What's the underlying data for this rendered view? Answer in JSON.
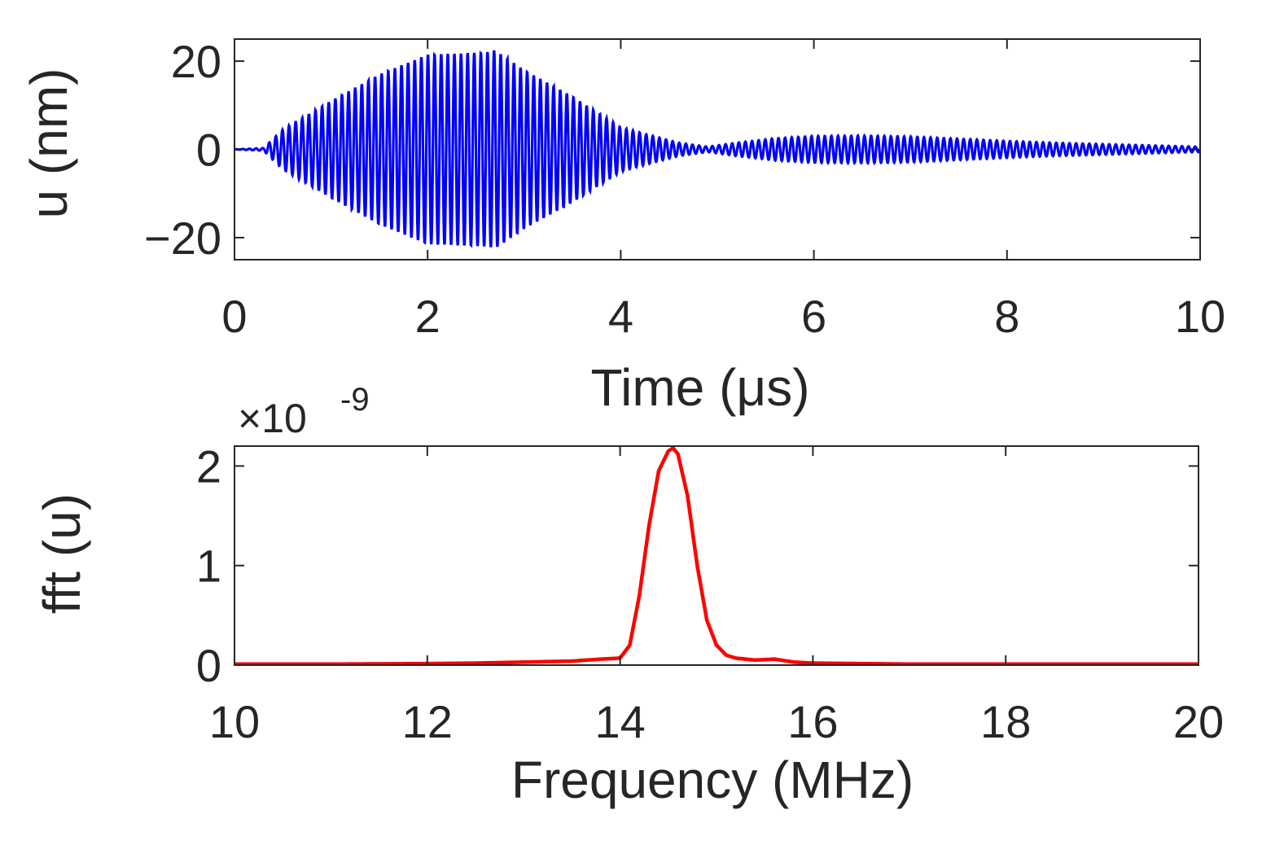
{
  "chart_data": [
    {
      "type": "line",
      "xlabel": "Time (μs)",
      "ylabel": "u (nm)",
      "xlim": [
        0,
        10
      ],
      "ylim": [
        -25,
        25
      ],
      "x_ticks": [
        "0",
        "2",
        "4",
        "6",
        "8",
        "10"
      ],
      "y_ticks": [
        "−20",
        "0",
        "20"
      ],
      "grid": false,
      "series": [
        {
          "color": "#0000ff",
          "carrier_frequency_mhz": 14.6,
          "envelope": {
            "x": [
              0.0,
              0.3,
              0.5,
              1.0,
              1.5,
              2.0,
              2.6,
              2.7,
              3.0,
              3.5,
              4.0,
              4.3,
              4.6,
              4.9,
              5.2,
              5.6,
              6.0,
              6.5,
              7.0,
              7.5,
              8.0,
              8.5,
              9.0,
              9.5,
              10.0
            ],
            "y": [
              0.0,
              0.3,
              4.5,
              11.0,
              17.0,
              21.5,
              22.0,
              22.5,
              18.0,
              12.0,
              5.0,
              3.2,
              1.5,
              0.6,
              1.5,
              2.5,
              3.0,
              3.1,
              2.9,
              2.4,
              1.9,
              1.5,
              1.2,
              0.9,
              0.6
            ]
          }
        }
      ]
    },
    {
      "type": "line",
      "xlabel": "Frequency (MHz)",
      "ylabel": "fft (u)",
      "exponent_label": "×10",
      "exponent_power": "-9",
      "xlim": [
        10,
        20
      ],
      "ylim": [
        0,
        2.2
      ],
      "x_ticks": [
        "10",
        "12",
        "14",
        "16",
        "18",
        "20"
      ],
      "y_ticks": [
        "0",
        "1",
        "2"
      ],
      "grid": false,
      "series": [
        {
          "color": "#ff0000",
          "x": [
            10.0,
            11.0,
            12.0,
            12.5,
            13.0,
            13.5,
            13.8,
            14.0,
            14.1,
            14.2,
            14.3,
            14.4,
            14.5,
            14.55,
            14.6,
            14.7,
            14.8,
            14.9,
            15.0,
            15.1,
            15.2,
            15.4,
            15.6,
            15.8,
            16.0,
            16.5,
            17.0,
            18.0,
            19.0,
            20.0
          ],
          "y": [
            0.01,
            0.01,
            0.015,
            0.02,
            0.03,
            0.04,
            0.06,
            0.07,
            0.2,
            0.7,
            1.4,
            1.95,
            2.15,
            2.18,
            2.12,
            1.7,
            1.0,
            0.45,
            0.2,
            0.1,
            0.07,
            0.05,
            0.06,
            0.03,
            0.02,
            0.015,
            0.01,
            0.01,
            0.01,
            0.01
          ]
        }
      ]
    }
  ]
}
